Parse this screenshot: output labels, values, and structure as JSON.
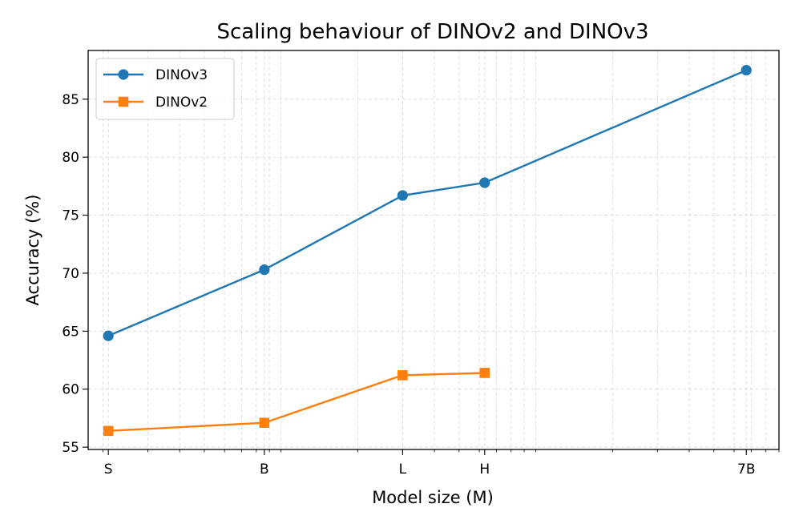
{
  "chart_data": {
    "type": "line",
    "title": "Scaling behaviour of DINOv2 and DINOv3",
    "xlabel": "Model size (M)",
    "ylabel": "Accuracy (%)",
    "xscale": "log",
    "xlim": [
      17.5,
      9000
    ],
    "ylim": [
      54.8,
      89.2
    ],
    "grid": true,
    "legend_position": "top-left",
    "x_ticks": [
      {
        "value": 21,
        "label": "S"
      },
      {
        "value": 86,
        "label": "B"
      },
      {
        "value": 300,
        "label": "L"
      },
      {
        "value": 630,
        "label": "H"
      },
      {
        "value": 6700,
        "label": "7B"
      }
    ],
    "y_ticks": [
      55,
      60,
      65,
      70,
      75,
      80,
      85
    ],
    "series": [
      {
        "name": "DINOv3",
        "color": "#1f77b4",
        "marker": "circle",
        "x": [
          21,
          86,
          300,
          630,
          6700
        ],
        "values": [
          64.6,
          70.3,
          76.7,
          77.8,
          87.5
        ]
      },
      {
        "name": "DINOv2",
        "color": "#ff7f0e",
        "marker": "square",
        "x": [
          21,
          86,
          300,
          630
        ],
        "values": [
          56.4,
          57.1,
          61.2,
          61.4
        ]
      }
    ]
  }
}
